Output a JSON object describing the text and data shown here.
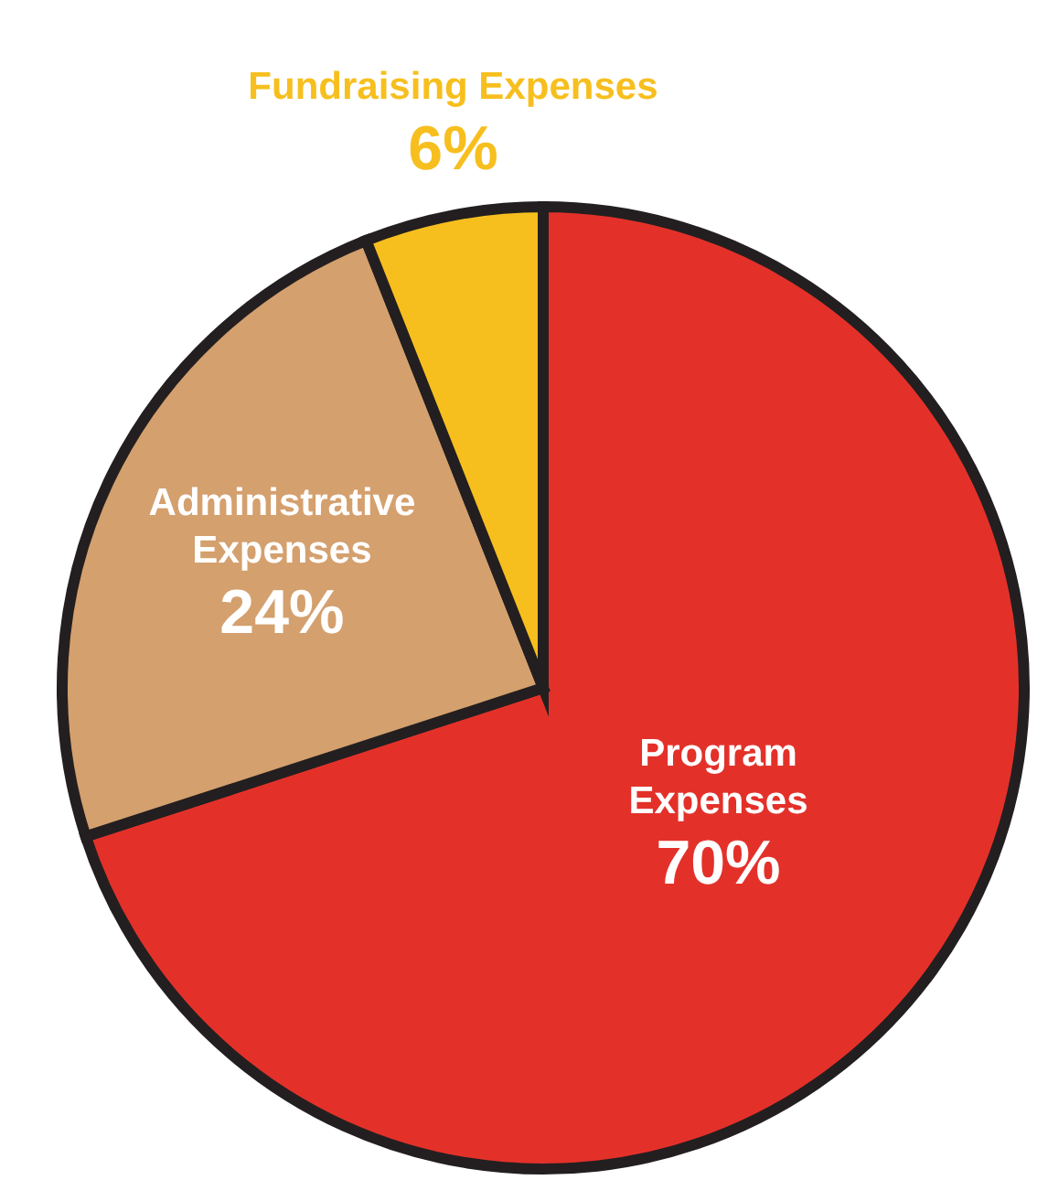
{
  "chart_data": {
    "type": "pie",
    "categories": [
      "Program Expenses",
      "Administrative Expenses",
      "Fundraising Expenses"
    ],
    "values": [
      70,
      24,
      6
    ],
    "colors": [
      "#e3312a",
      "#d4a06e",
      "#f7bf1e"
    ],
    "value_labels": [
      "70%",
      "24%",
      "6%"
    ]
  }
}
